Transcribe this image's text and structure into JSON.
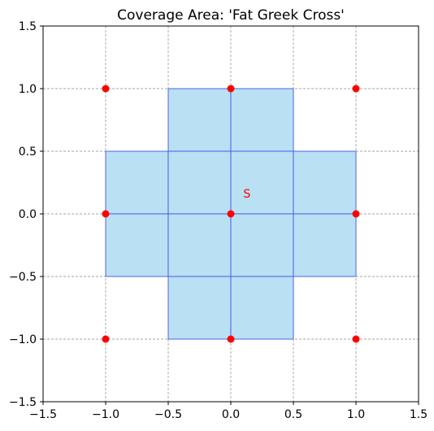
{
  "chart_data": {
    "type": "scatter",
    "title": "Coverage Area: 'Fat Greek Cross'",
    "xlabel": "",
    "ylabel": "",
    "xlim": [
      -1.5,
      1.5
    ],
    "ylim": [
      -1.5,
      1.5
    ],
    "x_ticks": [
      "-1.5",
      "-1.0",
      "-0.5",
      "0.0",
      "0.5",
      "1.0",
      "1.5"
    ],
    "y_ticks": [
      "-1.5",
      "-1.0",
      "-0.5",
      "0.0",
      "0.5",
      "1.0",
      "1.5"
    ],
    "x_tick_values": [
      -1.5,
      -1.0,
      -0.5,
      0.0,
      0.5,
      1.0,
      1.5
    ],
    "y_tick_values": [
      -1.5,
      -1.0,
      -0.5,
      0.0,
      0.5,
      1.0,
      1.5
    ],
    "grid": true,
    "colors": {
      "cell_fill": "#b9e0f3",
      "cell_edge": "#3b4fe0",
      "points": "#ff0000",
      "grid": "#888888"
    },
    "cells": [
      {
        "x0": -0.5,
        "x1": 0.0,
        "y0": 0.5,
        "y1": 1.0
      },
      {
        "x0": 0.0,
        "x1": 0.5,
        "y0": 0.5,
        "y1": 1.0
      },
      {
        "x0": -1.0,
        "x1": -0.5,
        "y0": 0.0,
        "y1": 0.5
      },
      {
        "x0": -0.5,
        "x1": 0.0,
        "y0": 0.0,
        "y1": 0.5
      },
      {
        "x0": 0.0,
        "x1": 0.5,
        "y0": 0.0,
        "y1": 0.5
      },
      {
        "x0": 0.5,
        "x1": 1.0,
        "y0": 0.0,
        "y1": 0.5
      },
      {
        "x0": -1.0,
        "x1": -0.5,
        "y0": -0.5,
        "y1": 0.0
      },
      {
        "x0": -0.5,
        "x1": 0.0,
        "y0": -0.5,
        "y1": 0.0
      },
      {
        "x0": 0.0,
        "x1": 0.5,
        "y0": -0.5,
        "y1": 0.0
      },
      {
        "x0": 0.5,
        "x1": 1.0,
        "y0": -0.5,
        "y1": 0.0
      },
      {
        "x0": -0.5,
        "x1": 0.0,
        "y0": -1.0,
        "y1": -0.5
      },
      {
        "x0": 0.0,
        "x1": 0.5,
        "y0": -1.0,
        "y1": -0.5
      }
    ],
    "points": [
      {
        "x": -1.0,
        "y": 1.0
      },
      {
        "x": 0.0,
        "y": 1.0
      },
      {
        "x": 1.0,
        "y": 1.0
      },
      {
        "x": -1.0,
        "y": 0.0
      },
      {
        "x": 0.0,
        "y": 0.0
      },
      {
        "x": 1.0,
        "y": 0.0
      },
      {
        "x": -1.0,
        "y": -1.0
      },
      {
        "x": 0.0,
        "y": -1.0
      },
      {
        "x": 1.0,
        "y": -1.0
      }
    ],
    "annotations": [
      {
        "text": "S",
        "x": 0.1,
        "y": 0.13,
        "color": "#ff0000"
      }
    ]
  }
}
